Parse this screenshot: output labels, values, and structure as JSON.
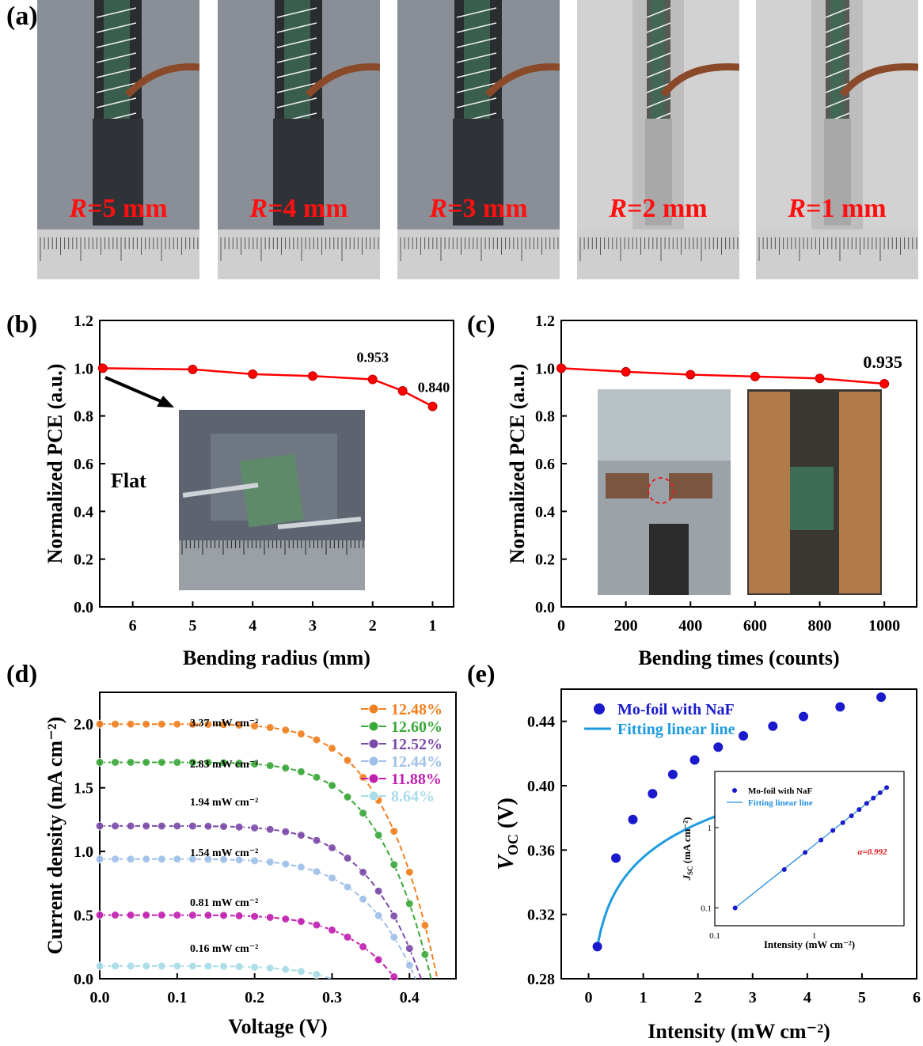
{
  "panel_a": {
    "label": "(a)",
    "radius_labels": [
      {
        "var": "R",
        "text": "=5 mm"
      },
      {
        "var": "R",
        "text": "=4 mm"
      },
      {
        "var": "R",
        "text": "=3 mm"
      },
      {
        "var": "R",
        "text": "=2 mm"
      },
      {
        "var": "R",
        "text": "=1 mm"
      }
    ]
  },
  "chart_data": [
    {
      "id": "b",
      "panel_label": "(b)",
      "type": "line",
      "xlabel": "Bending radius (mm)",
      "ylabel": "Normalized PCE (a.u.)",
      "xlim": [
        6.55,
        0.65
      ],
      "ylim": [
        0.0,
        1.2
      ],
      "x_ticks": [
        6,
        5,
        4,
        3,
        2,
        1
      ],
      "y_ticks": [
        "0.0",
        "0.2",
        "0.4",
        "0.6",
        "0.8",
        "1.0",
        "1.2"
      ],
      "series": [
        {
          "color": "#ff0000",
          "x": [
            6.5,
            5,
            4,
            3,
            2,
            1.5,
            1
          ],
          "y": [
            1.0,
            0.995,
            0.975,
            0.967,
            0.953,
            0.905,
            0.84
          ]
        }
      ],
      "annotations": [
        "0.953",
        "0.840",
        "Flat"
      ],
      "inset": "photo of flat device on ruler"
    },
    {
      "id": "c",
      "panel_label": "(c)",
      "type": "line",
      "xlabel": "Bending times (counts)",
      "ylabel": "Normalized PCE (a.u.)",
      "xlim": [
        0,
        1100
      ],
      "ylim": [
        0.0,
        1.2
      ],
      "x_ticks": [
        0,
        200,
        400,
        600,
        800,
        1000
      ],
      "y_ticks": [
        "0.0",
        "0.2",
        "0.4",
        "0.6",
        "0.8",
        "1.0",
        "1.2"
      ],
      "series": [
        {
          "color": "#ff0000",
          "x": [
            0,
            200,
            400,
            600,
            800,
            1000
          ],
          "y": [
            1.0,
            0.985,
            0.973,
            0.965,
            0.957,
            0.935
          ]
        }
      ],
      "annotations": [
        "0.935"
      ],
      "inset": "photos of bending test fixture"
    },
    {
      "id": "d",
      "panel_label": "(d)",
      "type": "line",
      "xlabel": "Voltage (V)",
      "ylabel": "Current density (mA cm⁻²)",
      "xlim": [
        0,
        0.46
      ],
      "ylim": [
        0,
        2.25
      ],
      "x_ticks": [
        "0.0",
        "0.1",
        "0.2",
        "0.3",
        "0.4"
      ],
      "y_ticks": [
        "0.0",
        "0.5",
        "1.0",
        "1.5",
        "2.0"
      ],
      "series": [
        {
          "name": "12.48%",
          "color": "#f08020",
          "jsc": 2.0,
          "voc": 0.436,
          "n": 1.05,
          "intensity": "3.37 mW cm⁻²"
        },
        {
          "name": "12.60%",
          "color": "#3aa83a",
          "jsc": 1.7,
          "voc": 0.428,
          "n": 1.05,
          "intensity": "2.83 mW cm⁻²"
        },
        {
          "name": "12.52%",
          "color": "#7b4aa8",
          "jsc": 1.2,
          "voc": 0.415,
          "n": 1.0,
          "intensity": "1.94 mW cm⁻²"
        },
        {
          "name": "12.44%",
          "color": "#9fbfe8",
          "jsc": 0.94,
          "voc": 0.408,
          "n": 1.0,
          "intensity": "1.54 mW cm⁻²"
        },
        {
          "name": "11.88%",
          "color": "#c020b0",
          "jsc": 0.5,
          "voc": 0.382,
          "n": 1.0,
          "intensity": "0.81 mW cm⁻²"
        },
        {
          "name": "8.64%",
          "color": "#a8dce8",
          "jsc": 0.1,
          "voc": 0.3,
          "n": 1.0,
          "intensity": "0.16 mW cm⁻²"
        }
      ]
    },
    {
      "id": "e",
      "panel_label": "(e)",
      "type": "scatter",
      "xlabel": "Intensity (mW cm⁻²)",
      "ylabel": "V_OC (V)",
      "xlim": [
        -0.5,
        6
      ],
      "ylim": [
        0.28,
        0.46
      ],
      "x_ticks": [
        "0",
        "1",
        "2",
        "3",
        "4",
        "5",
        "6"
      ],
      "y_ticks": [
        "0.28",
        "0.32",
        "0.36",
        "0.40",
        "0.44"
      ],
      "legend": [
        "Mo-foil with NaF",
        "Fitting linear line"
      ],
      "series": [
        {
          "name": "Mo-foil with NaF",
          "color": "#1a1acc",
          "x": [
            0.16,
            0.5,
            0.81,
            1.17,
            1.54,
            1.94,
            2.37,
            2.83,
            3.37,
            3.93,
            4.6,
            5.35
          ],
          "y": [
            0.3,
            0.355,
            0.379,
            0.395,
            0.407,
            0.416,
            0.424,
            0.431,
            0.437,
            0.443,
            0.449,
            0.455
          ]
        },
        {
          "name": "Fitting linear line",
          "color": "#1e9be0"
        }
      ],
      "inset": {
        "type": "scatter",
        "scale": "log-log",
        "xlabel": "Intensity (mW cm⁻²)",
        "ylabel": "J_SC (mA cm⁻²)",
        "x_ticks": [
          "0.1",
          "1"
        ],
        "y_ticks": [
          "0.1",
          "1"
        ],
        "legend": [
          "Mo-foil with NaF",
          "Fitting linear line"
        ],
        "annotation": "α=0.992",
        "x": [
          0.16,
          0.5,
          0.81,
          1.17,
          1.54,
          1.94,
          2.37,
          2.83,
          3.37,
          3.93,
          4.6,
          5.35
        ],
        "y": [
          0.1,
          0.3,
          0.49,
          0.7,
          0.92,
          1.15,
          1.4,
          1.68,
          2.0,
          2.33,
          2.72,
          3.15
        ]
      }
    }
  ]
}
